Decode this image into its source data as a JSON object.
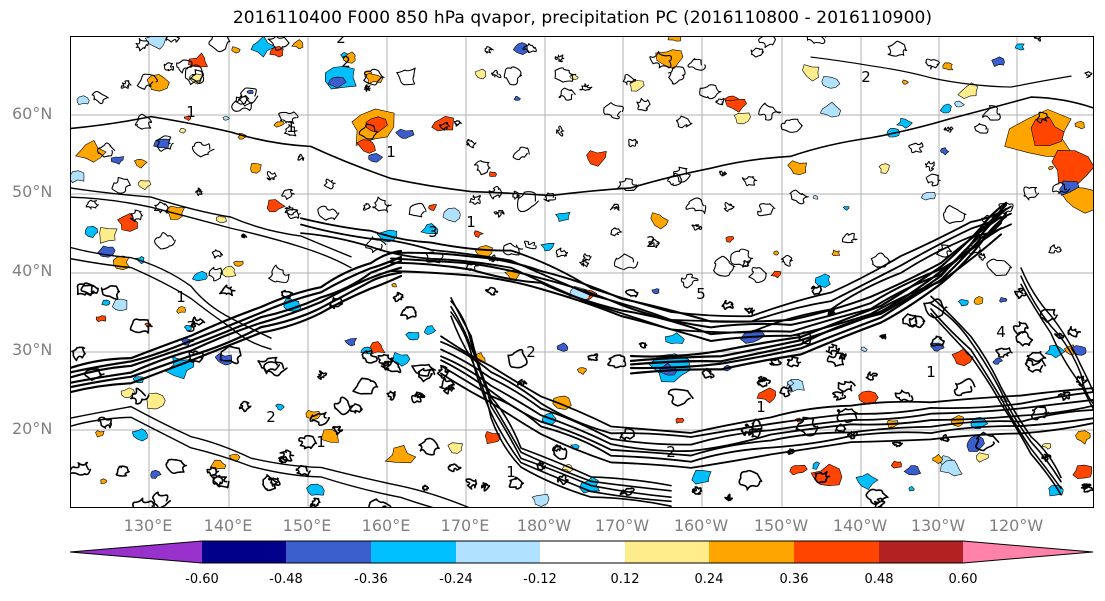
{
  "title": "2016110400 F000 850 hPa qvapor, precipitation PC (2016110800 - 2016110900)",
  "lat_labels": [
    "60°N",
    "50°N",
    "40°N",
    "30°N",
    "20°N"
  ],
  "lon_labels": [
    "130°E",
    "140°E",
    "150°E",
    "160°E",
    "170°E",
    "180°W",
    "170°W",
    "160°W",
    "150°W",
    "140°W",
    "130°W",
    "120°W"
  ],
  "colorbar": {
    "colors": [
      "#9932cc",
      "#00008b",
      "#3a5fcd",
      "#00bfff",
      "#b0e2ff",
      "#ffffff",
      "#ffec8b",
      "#ffa500",
      "#ff4500",
      "#b22222",
      "#ff82ab"
    ],
    "ticks": [
      "-0.60",
      "-0.48",
      "-0.36",
      "-0.24",
      "-0.12",
      "0.12",
      "0.24",
      "0.36",
      "0.48",
      "0.60"
    ]
  },
  "contour_labels": [
    "2",
    "2",
    "1",
    "1",
    "3",
    "2",
    "2",
    "1",
    "5",
    "1",
    "2",
    "3",
    "1",
    "1",
    "2",
    "1",
    "1",
    "4",
    "2",
    "1"
  ]
}
